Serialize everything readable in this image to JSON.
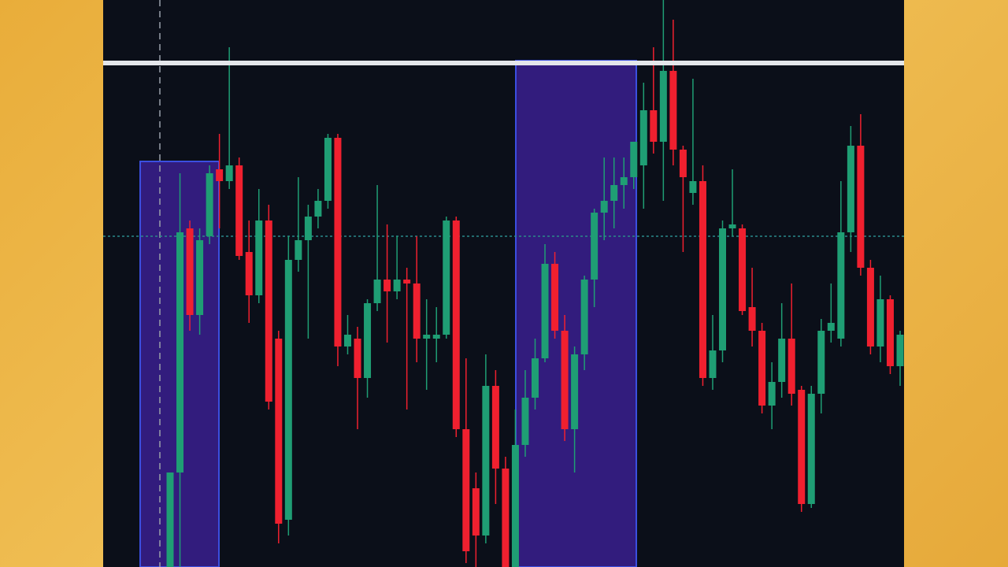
{
  "chart_data": {
    "type": "candlestick",
    "up_color": "#1f9e74",
    "down_color": "#f0202f",
    "ylim": [
      0,
      72
    ],
    "open": [
      0,
      12,
      43,
      32,
      42,
      50.5,
      49,
      51,
      40,
      34.5,
      44,
      29,
      6,
      39,
      41.5,
      44.5,
      46.5,
      54.5,
      28,
      29,
      24,
      33.5,
      36.5,
      35,
      36.5,
      36,
      29,
      29,
      29.5,
      44,
      17.5,
      10,
      4,
      23,
      12.5,
      0,
      15.5,
      21.5,
      26.5,
      38.5,
      30,
      17.5,
      27,
      36.5,
      45,
      46.5,
      48.5,
      49.5,
      51,
      58,
      54,
      63,
      53,
      47.5,
      49,
      24,
      27.5,
      43,
      43,
      33,
      30,
      20.5,
      23.5,
      29,
      22.5,
      8,
      22,
      30,
      29,
      42.5,
      53.5,
      38,
      28,
      34,
      25.5
    ],
    "high": [
      12,
      50,
      44,
      43,
      51,
      55,
      66,
      52,
      44,
      48,
      46,
      30,
      42,
      49.5,
      46,
      48,
      55,
      55,
      32,
      30.5,
      34,
      48.5,
      43.5,
      42,
      38,
      42,
      34,
      33,
      44.5,
      44.5,
      26.5,
      12,
      27,
      25,
      14,
      20,
      25,
      29,
      41,
      40,
      32,
      28,
      37,
      45.5,
      52,
      52,
      52,
      54,
      61.5,
      66,
      72,
      69.5,
      53.5,
      62,
      51,
      32,
      44,
      50.5,
      43.5,
      38,
      31,
      26,
      33.5,
      36,
      23,
      23,
      31.5,
      36,
      49,
      56,
      57.5,
      39,
      37,
      34.5,
      30
    ],
    "low": [
      0,
      0,
      30,
      29.5,
      41,
      43,
      48,
      39,
      31,
      33.5,
      20,
      3,
      4,
      37.5,
      29,
      43,
      45.5,
      25.5,
      27,
      17.5,
      21.5,
      32.5,
      28.5,
      34,
      20,
      26,
      22.5,
      26,
      29,
      16.5,
      0.5,
      0,
      3,
      8,
      0,
      0,
      14,
      20,
      26,
      29,
      16,
      12,
      25,
      33,
      41.5,
      43,
      45.5,
      48,
      45.5,
      52.5,
      46.5,
      51,
      40,
      46,
      23,
      22.5,
      26,
      42,
      32,
      28,
      19.5,
      17.5,
      21.5,
      20.5,
      7,
      7.5,
      19.5,
      28.5,
      28,
      40,
      37,
      27,
      26,
      24.5,
      23
    ],
    "close": [
      12,
      42.5,
      32,
      41.5,
      50,
      49,
      51,
      39.5,
      34.5,
      44,
      21,
      5.5,
      39,
      41.5,
      44.5,
      46.5,
      54.5,
      28,
      29.5,
      24,
      33.5,
      36.5,
      35,
      36.5,
      36,
      29,
      29.5,
      29.5,
      44,
      17.5,
      2,
      4,
      23,
      12.5,
      0,
      15.5,
      21.5,
      26.5,
      38.5,
      30,
      17.5,
      27,
      36.5,
      45,
      46.5,
      48.5,
      49.5,
      54,
      58,
      54,
      63,
      53,
      49.5,
      49,
      24,
      27.5,
      43,
      43.5,
      32.5,
      30,
      20.5,
      23.5,
      29,
      22,
      8,
      22,
      30,
      31,
      42.5,
      53.5,
      38,
      28,
      34,
      25.5,
      29.5
    ]
  }
}
